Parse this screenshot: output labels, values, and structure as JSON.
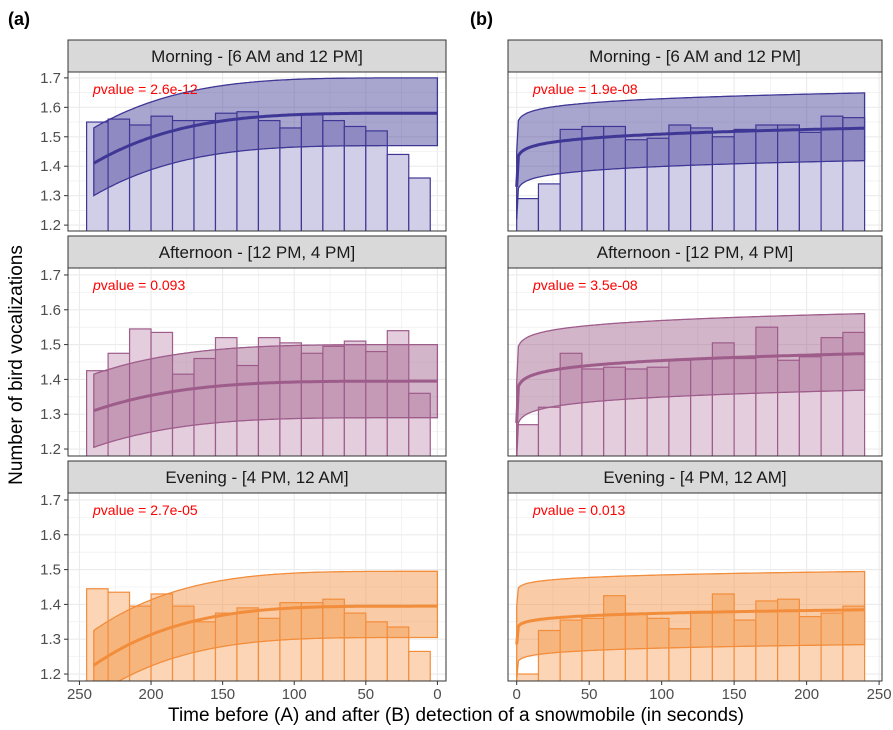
{
  "figure": {
    "tags": [
      "(a)",
      "(b)"
    ],
    "xlabel": "Time before (A) and after (B) detection of a snowmobile (in seconds)",
    "ylabel": "Number of bird vocalizations"
  },
  "chart_data": {
    "type": "bar",
    "ylim": [
      1.18,
      1.72
    ],
    "yticks": [
      1.2,
      1.3,
      1.4,
      1.5,
      1.6,
      1.7
    ],
    "grid": true,
    "panels": [
      {
        "column": "(a)",
        "row": 0,
        "strip": "Morning - [6 AM and 12 PM]",
        "pvalue_label": "value = 2.6e-12",
        "p_symbol": "p",
        "xlim": [
          258,
          -6
        ],
        "xticks": [
          250,
          200,
          150,
          100,
          50,
          0
        ],
        "color": "#3f3795",
        "fill": "#d1cfe8",
        "bins": [
          245,
          230,
          215,
          200,
          185,
          170,
          155,
          140,
          125,
          110,
          95,
          80,
          65,
          50,
          35,
          20
        ],
        "values": [
          1.55,
          1.56,
          1.54,
          1.57,
          1.555,
          1.555,
          1.58,
          1.585,
          1.555,
          1.53,
          1.575,
          1.555,
          1.535,
          1.52,
          1.44,
          1.36
        ],
        "fit": {
          "a": 1.58,
          "d": 0.2
        },
        "band": {
          "lower_offset": 0.11,
          "upper_offset": 0.12
        }
      },
      {
        "column": "(b)",
        "row": 0,
        "strip": "Morning - [6 AM and 12 PM]",
        "pvalue_label": "value = 1.9e-08",
        "p_symbol": "p",
        "xlim": [
          -6,
          252
        ],
        "xticks": [
          0,
          50,
          100,
          150,
          200,
          250
        ],
        "color": "#3f3795",
        "fill": "#d1cfe8",
        "bins": [
          0,
          15,
          30,
          45,
          60,
          75,
          90,
          105,
          120,
          135,
          150,
          165,
          180,
          195,
          210,
          225
        ],
        "values": [
          1.29,
          1.34,
          1.525,
          1.535,
          1.535,
          1.49,
          1.495,
          1.54,
          1.53,
          1.5,
          1.525,
          1.54,
          1.54,
          1.515,
          1.57,
          1.565
        ],
        "fit": {
          "a": 1.33,
          "d": 0.2
        },
        "band": {
          "lower_offset": 0.11,
          "upper_offset": 0.12
        }
      },
      {
        "column": "(a)",
        "row": 1,
        "strip": "Afternoon - [12 PM, 4 PM]",
        "pvalue_label": "value = 0.093",
        "p_symbol": "p",
        "xlim": [
          258,
          -6
        ],
        "xticks": [
          250,
          200,
          150,
          100,
          50,
          0
        ],
        "color": "#9e5c8a",
        "fill": "#e4cedd",
        "bins": [
          245,
          230,
          215,
          200,
          185,
          170,
          155,
          140,
          125,
          110,
          95,
          80,
          65,
          50,
          35,
          20
        ],
        "values": [
          1.425,
          1.475,
          1.545,
          1.535,
          1.415,
          1.46,
          1.52,
          1.44,
          1.52,
          1.505,
          1.475,
          1.495,
          1.51,
          1.48,
          1.54,
          1.36
        ],
        "fit": {
          "a": 1.395,
          "d": 0.1
        },
        "band": {
          "lower_offset": 0.105,
          "upper_offset": 0.105
        }
      },
      {
        "column": "(b)",
        "row": 1,
        "strip": "Afternoon - [12 PM, 4 PM]",
        "pvalue_label": "value = 3.5e-08",
        "p_symbol": "p",
        "xlim": [
          -6,
          252
        ],
        "xticks": [
          0,
          50,
          100,
          150,
          200,
          250
        ],
        "color": "#9e5c8a",
        "fill": "#e4cedd",
        "bins": [
          0,
          15,
          30,
          45,
          60,
          75,
          90,
          105,
          120,
          135,
          150,
          165,
          180,
          195,
          210,
          225
        ],
        "values": [
          1.27,
          1.32,
          1.475,
          1.43,
          1.435,
          1.43,
          1.435,
          1.455,
          1.46,
          1.505,
          1.46,
          1.55,
          1.455,
          1.465,
          1.52,
          1.535
        ],
        "fit": {
          "a": 1.275,
          "d": 0.2
        },
        "band": {
          "lower_offset": 0.105,
          "upper_offset": 0.115
        }
      },
      {
        "column": "(a)",
        "row": 2,
        "strip": "Evening - [4 PM, 12 AM]",
        "pvalue_label": "value = 2.7e-05",
        "p_symbol": "p",
        "xlim": [
          258,
          -6
        ],
        "xticks": [
          250,
          200,
          150,
          100,
          50,
          0
        ],
        "color": "#f28d3c",
        "fill": "#fbd5b5",
        "bins": [
          245,
          230,
          215,
          200,
          185,
          170,
          155,
          140,
          125,
          110,
          95,
          80,
          65,
          50,
          35,
          20
        ],
        "values": [
          1.445,
          1.435,
          1.395,
          1.43,
          1.395,
          1.35,
          1.375,
          1.39,
          1.36,
          1.405,
          1.405,
          1.415,
          1.375,
          1.35,
          1.335,
          1.265
        ],
        "fit": {
          "a": 1.395,
          "d": 0.2
        },
        "band": {
          "lower_offset": 0.09,
          "upper_offset": 0.1
        }
      },
      {
        "column": "(b)",
        "row": 2,
        "strip": "Evening - [4 PM, 12 AM]",
        "pvalue_label": "value = 0.013",
        "p_symbol": "p",
        "xlim": [
          -6,
          252
        ],
        "xticks": [
          0,
          50,
          100,
          150,
          200,
          250
        ],
        "color": "#f28d3c",
        "fill": "#fbd5b5",
        "bins": [
          0,
          15,
          30,
          45,
          60,
          75,
          90,
          105,
          120,
          135,
          150,
          165,
          180,
          195,
          210,
          225
        ],
        "values": [
          1.2,
          1.325,
          1.355,
          1.36,
          1.425,
          1.375,
          1.36,
          1.33,
          1.38,
          1.43,
          1.355,
          1.41,
          1.415,
          1.365,
          1.375,
          1.395
        ],
        "fit": {
          "a": 1.285,
          "d": 0.1
        },
        "band": {
          "lower_offset": 0.1,
          "upper_offset": 0.11
        }
      }
    ]
  }
}
